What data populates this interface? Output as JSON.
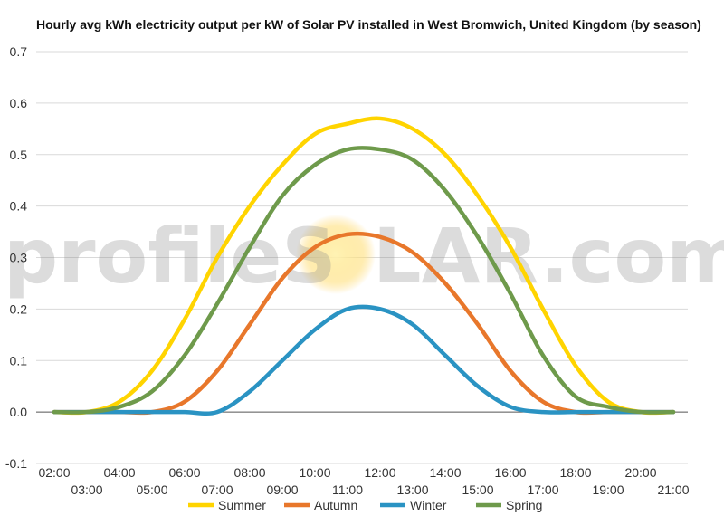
{
  "watermark": {
    "part1": "profileS",
    "part2": "LAR.com"
  },
  "chart_data": {
    "type": "line",
    "title": "Hourly avg kWh electricity output per kW of Solar PV installed in West Bromwich, United Kingdom (by season)",
    "xlabel": "",
    "ylabel": "",
    "x_ticks": [
      "02:00",
      "03:00",
      "04:00",
      "05:00",
      "06:00",
      "07:00",
      "08:00",
      "09:00",
      "10:00",
      "11:00",
      "12:00",
      "13:00",
      "14:00",
      "15:00",
      "16:00",
      "17:00",
      "18:00",
      "19:00",
      "20:00",
      "21:00"
    ],
    "y_ticks": [
      "-0.1",
      "0.0",
      "0.1",
      "0.2",
      "0.3",
      "0.4",
      "0.5",
      "0.6",
      "0.7"
    ],
    "ylim": [
      -0.1,
      0.7
    ],
    "grid": true,
    "legend_position": "bottom",
    "series": [
      {
        "name": "Summer",
        "color": "#ffd400",
        "values": [
          0.0,
          0.0,
          0.02,
          0.08,
          0.18,
          0.3,
          0.4,
          0.48,
          0.54,
          0.56,
          0.57,
          0.55,
          0.5,
          0.42,
          0.32,
          0.2,
          0.09,
          0.02,
          0.0,
          0.0
        ]
      },
      {
        "name": "Autumn",
        "color": "#e8772b",
        "values": [
          0.0,
          0.0,
          0.0,
          0.0,
          0.02,
          0.08,
          0.17,
          0.26,
          0.32,
          0.345,
          0.34,
          0.31,
          0.25,
          0.17,
          0.08,
          0.02,
          0.0,
          0.0,
          0.0,
          0.0
        ]
      },
      {
        "name": "Winter",
        "color": "#2a93c3",
        "values": [
          0.0,
          0.0,
          0.0,
          0.0,
          0.0,
          0.0,
          0.04,
          0.1,
          0.16,
          0.2,
          0.2,
          0.17,
          0.11,
          0.05,
          0.01,
          0.0,
          0.0,
          0.0,
          0.0,
          0.0
        ]
      },
      {
        "name": "Spring",
        "color": "#6e9a4b",
        "values": [
          0.0,
          0.0,
          0.01,
          0.04,
          0.11,
          0.21,
          0.32,
          0.42,
          0.48,
          0.51,
          0.51,
          0.49,
          0.43,
          0.34,
          0.23,
          0.11,
          0.03,
          0.01,
          0.0,
          0.0
        ]
      }
    ]
  }
}
